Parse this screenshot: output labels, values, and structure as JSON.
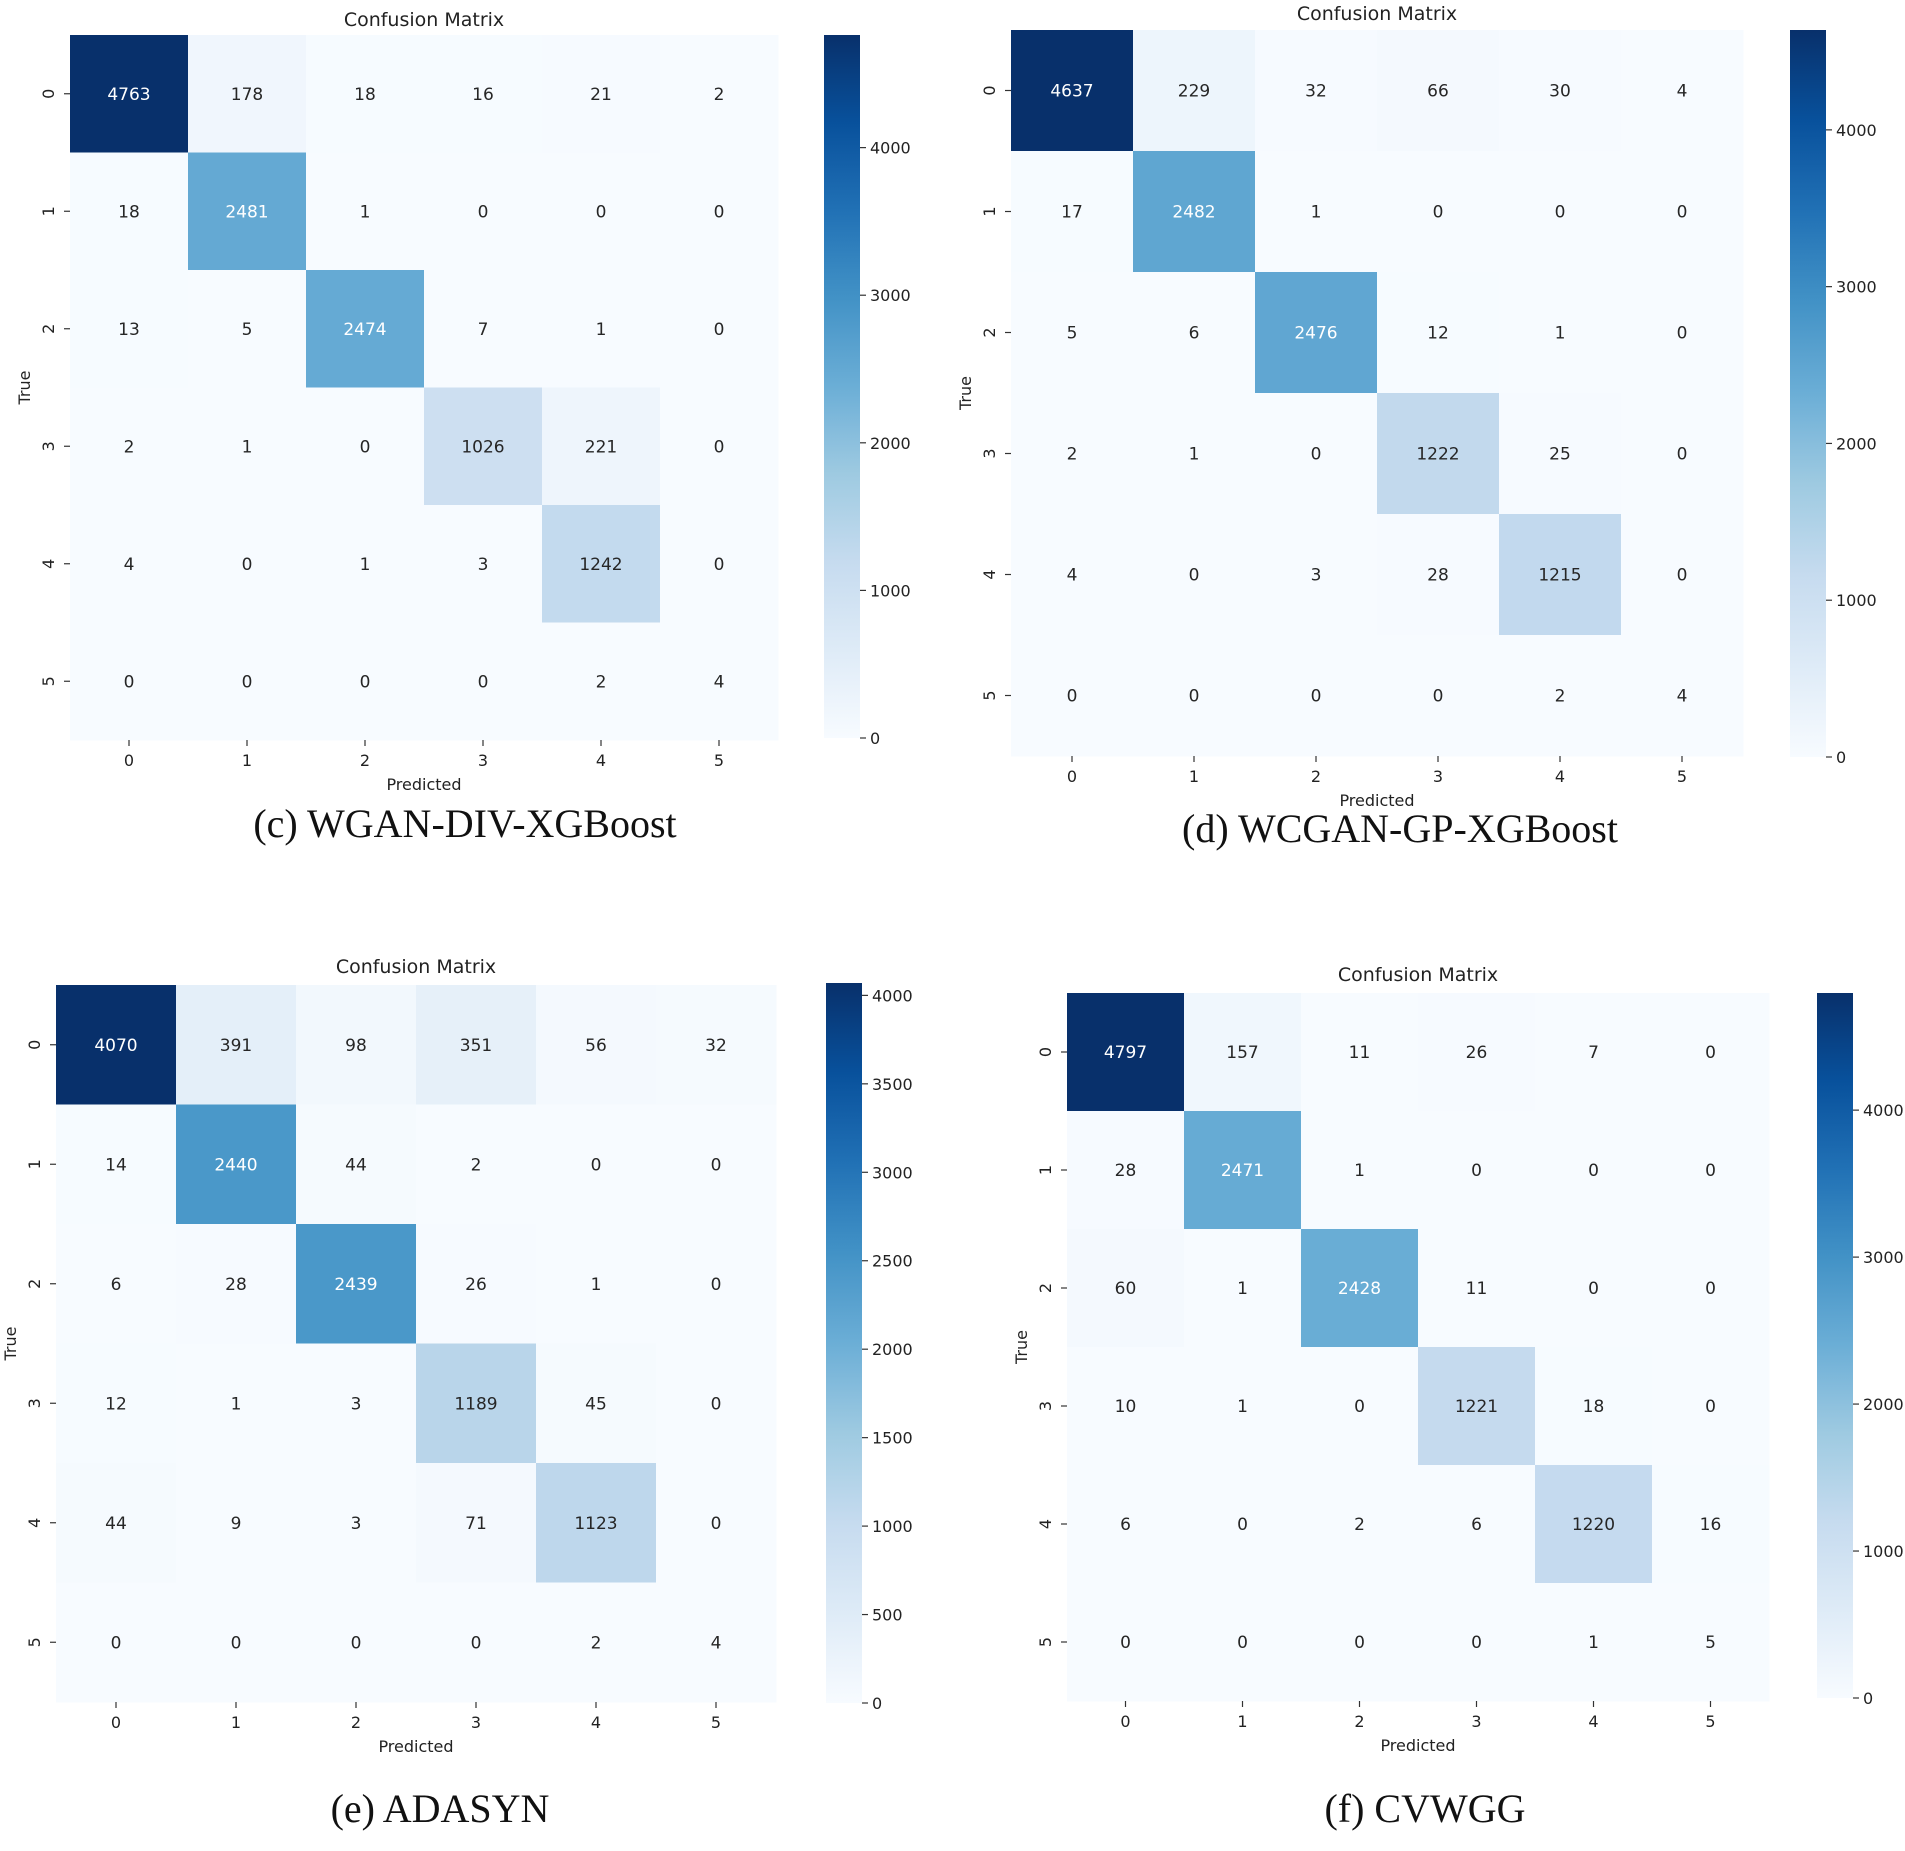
{
  "chart_data": [
    {
      "type": "heatmap",
      "title": "Confusion Matrix",
      "xlabel": "Predicted",
      "ylabel": "True",
      "caption": "(c) WGAN-DIV-XGBoost",
      "x_ticks": [
        "0",
        "1",
        "2",
        "3",
        "4",
        "5"
      ],
      "y_ticks": [
        "0",
        "1",
        "2",
        "3",
        "4",
        "5"
      ],
      "values": [
        [
          4763,
          178,
          18,
          16,
          21,
          2
        ],
        [
          18,
          2481,
          1,
          0,
          0,
          0
        ],
        [
          13,
          5,
          2474,
          7,
          1,
          0
        ],
        [
          2,
          1,
          0,
          1026,
          221,
          0
        ],
        [
          4,
          0,
          1,
          3,
          1242,
          0
        ],
        [
          0,
          0,
          0,
          0,
          2,
          4
        ]
      ],
      "colorbar": {
        "min": 0,
        "max": 4763,
        "ticks": [
          "0",
          "1000",
          "2000",
          "3000",
          "4000"
        ]
      }
    },
    {
      "type": "heatmap",
      "title": "Confusion Matrix",
      "xlabel": "Predicted",
      "ylabel": "True",
      "caption": "(d) WCGAN-GP-XGBoost",
      "x_ticks": [
        "0",
        "1",
        "2",
        "3",
        "4",
        "5"
      ],
      "y_ticks": [
        "0",
        "1",
        "2",
        "3",
        "4",
        "5"
      ],
      "values": [
        [
          4637,
          229,
          32,
          66,
          30,
          4
        ],
        [
          17,
          2482,
          1,
          0,
          0,
          0
        ],
        [
          5,
          6,
          2476,
          12,
          1,
          0
        ],
        [
          2,
          1,
          0,
          1222,
          25,
          0
        ],
        [
          4,
          0,
          3,
          28,
          1215,
          0
        ],
        [
          0,
          0,
          0,
          0,
          2,
          4
        ]
      ],
      "colorbar": {
        "min": 0,
        "max": 4637,
        "ticks": [
          "0",
          "1000",
          "2000",
          "3000",
          "4000"
        ]
      }
    },
    {
      "type": "heatmap",
      "title": "Confusion Matrix",
      "xlabel": "Predicted",
      "ylabel": "True",
      "caption": "(e) ADASYN",
      "x_ticks": [
        "0",
        "1",
        "2",
        "3",
        "4",
        "5"
      ],
      "y_ticks": [
        "0",
        "1",
        "2",
        "3",
        "4",
        "5"
      ],
      "values": [
        [
          4070,
          391,
          98,
          351,
          56,
          32
        ],
        [
          14,
          2440,
          44,
          2,
          0,
          0
        ],
        [
          6,
          28,
          2439,
          26,
          1,
          0
        ],
        [
          12,
          1,
          3,
          1189,
          45,
          0
        ],
        [
          44,
          9,
          3,
          71,
          1123,
          0
        ],
        [
          0,
          0,
          0,
          0,
          2,
          4
        ]
      ],
      "colorbar": {
        "min": 0,
        "max": 4070,
        "ticks": [
          "0",
          "500",
          "1000",
          "1500",
          "2000",
          "2500",
          "3000",
          "3500",
          "4000"
        ]
      }
    },
    {
      "type": "heatmap",
      "title": "Confusion Matrix",
      "xlabel": "Predicted",
      "ylabel": "True",
      "caption": "(f) CVWGG",
      "x_ticks": [
        "0",
        "1",
        "2",
        "3",
        "4",
        "5"
      ],
      "y_ticks": [
        "0",
        "1",
        "2",
        "3",
        "4",
        "5"
      ],
      "values": [
        [
          4797,
          157,
          11,
          26,
          7,
          0
        ],
        [
          28,
          2471,
          1,
          0,
          0,
          0
        ],
        [
          60,
          1,
          2428,
          11,
          0,
          0
        ],
        [
          10,
          1,
          0,
          1221,
          18,
          0
        ],
        [
          6,
          0,
          2,
          6,
          1220,
          16
        ],
        [
          0,
          0,
          0,
          0,
          1,
          5
        ]
      ],
      "colorbar": {
        "min": 0,
        "max": 4797,
        "ticks": [
          "0",
          "1000",
          "2000",
          "3000",
          "4000"
        ]
      }
    }
  ]
}
